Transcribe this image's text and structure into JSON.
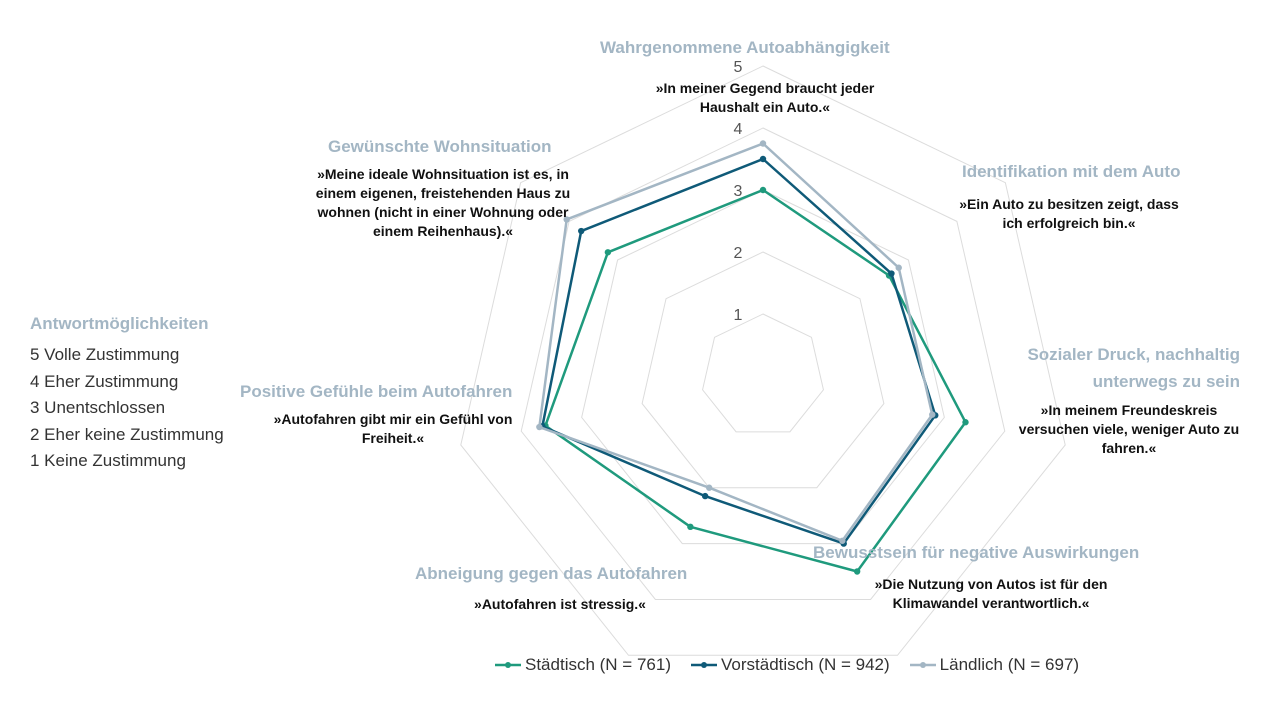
{
  "chart_data": {
    "type": "radar",
    "rmax": 5,
    "ticks": [
      "1",
      "2",
      "3",
      "4",
      "5"
    ],
    "axes": [
      {
        "title": "Wahrgenommene Autoabhängigkeit",
        "quote": "»In meiner Gegend braucht jeder Haushalt ein Auto.«"
      },
      {
        "title": "Identifikation mit dem Auto",
        "quote": "»Ein Auto zu besitzen zeigt, dass ich erfolgreich bin.«"
      },
      {
        "title": "Sozialer Druck, nachhaltig unterwegs zu sein",
        "quote": "»In meinem Freundeskreis versuchen viele, weniger Auto zu fahren.«"
      },
      {
        "title": "Bewusstsein für negative Auswirkungen",
        "quote": "»Die Nutzung von Autos ist für den Klimawandel verantwortlich.«"
      },
      {
        "title": "Abneigung gegen das Autofahren",
        "quote": "»Autofahren ist stressig.«"
      },
      {
        "title": "Positive Gefühle beim Autofahren",
        "quote": "»Autofahren gibt mir ein Gefühl von Freiheit.«"
      },
      {
        "title": "Gewünschte Wohnsituation",
        "quote": "»Meine ideale Wohnsituation ist es, in einem eigenen, freistehenden Haus zu wohnen (nicht in einer Wohnung oder einem Reihenhaus).«"
      }
    ],
    "series": [
      {
        "name": "Städtisch (N = 761)",
        "color": "#1f9a7d",
        "values": [
          3.0,
          2.6,
          3.35,
          3.5,
          2.7,
          3.6,
          3.2
        ]
      },
      {
        "name": "Vorstädtisch (N = 942)",
        "color": "#0f5a78",
        "values": [
          3.5,
          2.65,
          2.85,
          3.0,
          2.15,
          3.65,
          3.75
        ]
      },
      {
        "name": "Ländlich (N = 697)",
        "color": "#a3b6c4",
        "values": [
          3.75,
          2.8,
          2.8,
          2.95,
          2.0,
          3.7,
          4.05
        ]
      }
    ]
  },
  "response_legend": {
    "title": "Antwortmöglichkeiten",
    "items": [
      "5 Volle Zustimmung",
      "4 Eher Zustimmung",
      "3 Unentschlossen",
      "2 Eher keine Zustimmung",
      "1 Keine Zustimmung"
    ]
  }
}
